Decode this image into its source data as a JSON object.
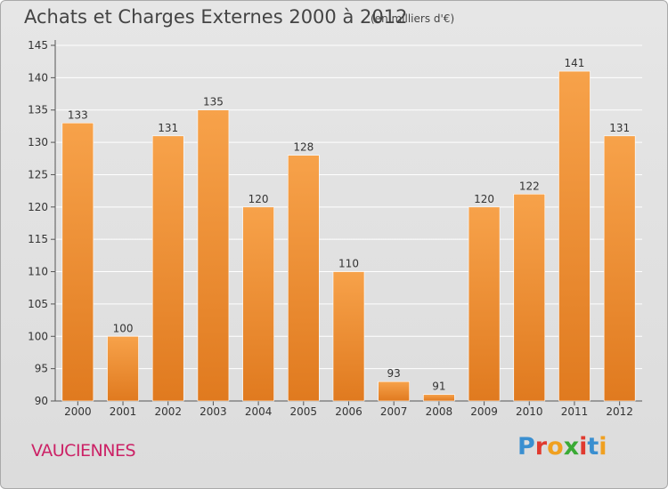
{
  "header": {
    "title": "Achats et Charges Externes 2000 à 2012",
    "unit": "(en milliers d'€)"
  },
  "footer": {
    "commune": "VAUCIENNES",
    "logo": {
      "letters": [
        "P",
        "r",
        "o",
        "x",
        "i",
        "t",
        "i"
      ],
      "colors": [
        "#3a8fd0",
        "#e03a2f",
        "#f0a020",
        "#3aaa35",
        "#e03a2f",
        "#3a8fd0",
        "#f0a020"
      ]
    }
  },
  "colors": {
    "bar_light": "#f7a24a",
    "bar_dark": "#e07a1f",
    "axis": "#555555",
    "grid": "#ffffff"
  },
  "chart_data": {
    "type": "bar",
    "title": "Achats et Charges Externes 2000 à 2012",
    "categories": [
      "2000",
      "2001",
      "2002",
      "2003",
      "2004",
      "2005",
      "2006",
      "2007",
      "2008",
      "2009",
      "2010",
      "2011",
      "2012"
    ],
    "values": [
      133,
      100,
      131,
      135,
      120,
      128,
      110,
      93,
      91,
      120,
      122,
      141,
      131
    ],
    "ylim": [
      90,
      145
    ],
    "yticks": [
      90,
      95,
      100,
      105,
      110,
      115,
      120,
      125,
      130,
      135,
      140,
      145
    ],
    "xlabel": "",
    "ylabel": "",
    "grid": true,
    "data_labels": true
  }
}
